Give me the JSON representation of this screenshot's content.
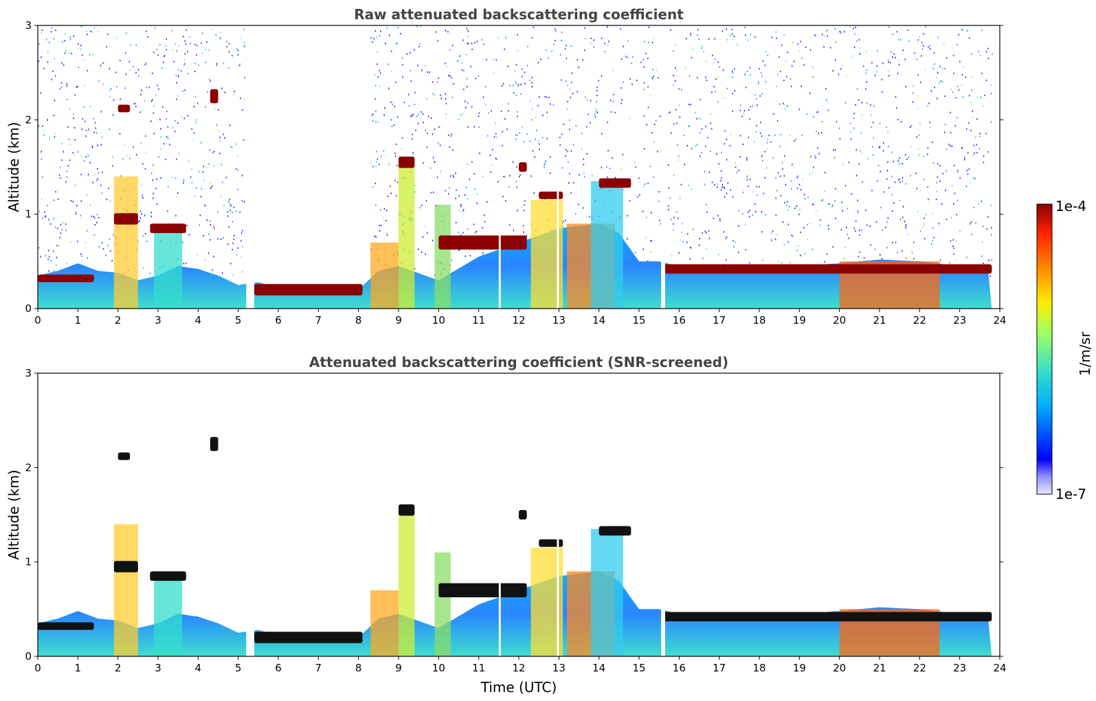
{
  "chart_data": [
    {
      "type": "heatmap",
      "title": "Raw attenuated backscattering coefficient",
      "xlabel": "",
      "ylabel": "Altitude (km)",
      "xlim": [
        0,
        24
      ],
      "ylim": [
        0,
        3
      ],
      "x_ticks": [
        "0",
        "1",
        "2",
        "3",
        "4",
        "5",
        "6",
        "7",
        "8",
        "9",
        "10",
        "11",
        "12",
        "13",
        "14",
        "15",
        "16",
        "17",
        "18",
        "19",
        "20",
        "21",
        "22",
        "23",
        "24"
      ],
      "y_ticks": [
        "0",
        "1",
        "2",
        "3"
      ],
      "screening": "raw",
      "boundary_layer_top_km": [
        [
          0,
          0.35
        ],
        [
          0.5,
          0.4
        ],
        [
          1,
          0.48
        ],
        [
          1.5,
          0.4
        ],
        [
          2,
          0.38
        ],
        [
          2.5,
          0.3
        ],
        [
          3,
          0.35
        ],
        [
          3.5,
          0.45
        ],
        [
          4,
          0.42
        ],
        [
          4.5,
          0.35
        ],
        [
          5,
          0.25
        ],
        [
          5.5,
          0.28
        ],
        [
          6,
          0.22
        ],
        [
          7,
          0.18
        ],
        [
          8,
          0.2
        ],
        [
          8.5,
          0.4
        ],
        [
          9,
          0.45
        ],
        [
          10,
          0.3
        ],
        [
          11,
          0.55
        ],
        [
          12,
          0.7
        ],
        [
          13,
          0.85
        ],
        [
          14,
          0.9
        ],
        [
          14.5,
          0.8
        ],
        [
          15,
          0.5
        ],
        [
          15.5,
          0.5
        ],
        [
          16,
          0.45
        ],
        [
          17,
          0.42
        ],
        [
          18,
          0.42
        ],
        [
          19,
          0.45
        ],
        [
          20,
          0.48
        ],
        [
          21,
          0.52
        ],
        [
          22,
          0.5
        ],
        [
          23,
          0.45
        ],
        [
          23.8,
          0.45
        ]
      ],
      "cloud_layers": [
        {
          "x": [
            0.0,
            1.4
          ],
          "alt_km": 0.32,
          "thickness_km": 0.08
        },
        {
          "x": [
            1.9,
            2.5
          ],
          "alt_km": 0.95,
          "thickness_km": 0.12
        },
        {
          "x": [
            2.0,
            2.3
          ],
          "alt_km": 2.12,
          "thickness_km": 0.08
        },
        {
          "x": [
            2.8,
            3.7
          ],
          "alt_km": 0.85,
          "thickness_km": 0.1
        },
        {
          "x": [
            4.3,
            4.5
          ],
          "alt_km": 2.25,
          "thickness_km": 0.15
        },
        {
          "x": [
            5.4,
            8.1
          ],
          "alt_km": 0.2,
          "thickness_km": 0.12
        },
        {
          "x": [
            9.0,
            9.4
          ],
          "alt_km": 1.55,
          "thickness_km": 0.12
        },
        {
          "x": [
            10.0,
            12.2
          ],
          "alt_km": 0.7,
          "thickness_km": 0.15
        },
        {
          "x": [
            12.0,
            12.2
          ],
          "alt_km": 1.5,
          "thickness_km": 0.1
        },
        {
          "x": [
            12.5,
            13.1
          ],
          "alt_km": 1.2,
          "thickness_km": 0.08
        },
        {
          "x": [
            14.0,
            14.8
          ],
          "alt_km": 1.33,
          "thickness_km": 0.1
        },
        {
          "x": [
            15.6,
            23.8
          ],
          "alt_km": 0.42,
          "thickness_km": 0.1
        }
      ]
    },
    {
      "type": "heatmap",
      "title": "Attenuated backscattering coefficient (SNR-screened)",
      "xlabel": "Time (UTC)",
      "ylabel": "Altitude (km)",
      "xlim": [
        0,
        24
      ],
      "ylim": [
        0,
        3
      ],
      "x_ticks": [
        "0",
        "1",
        "2",
        "3",
        "4",
        "5",
        "6",
        "7",
        "8",
        "9",
        "10",
        "11",
        "12",
        "13",
        "14",
        "15",
        "16",
        "17",
        "18",
        "19",
        "20",
        "21",
        "22",
        "23",
        "24"
      ],
      "y_ticks": [
        "0",
        "1",
        "2",
        "3"
      ],
      "screening": "snr"
    }
  ],
  "colorbar": {
    "label": "1/m/sr",
    "max_label": "1e-4",
    "min_label": "1e-7",
    "scale": "log",
    "colormap": "jet",
    "colors": [
      "#e8e8f8",
      "#0000ff",
      "#00aaff",
      "#33ddcc",
      "#99ff66",
      "#ffee00",
      "#ff8800",
      "#ff2200",
      "#8b0000"
    ]
  }
}
